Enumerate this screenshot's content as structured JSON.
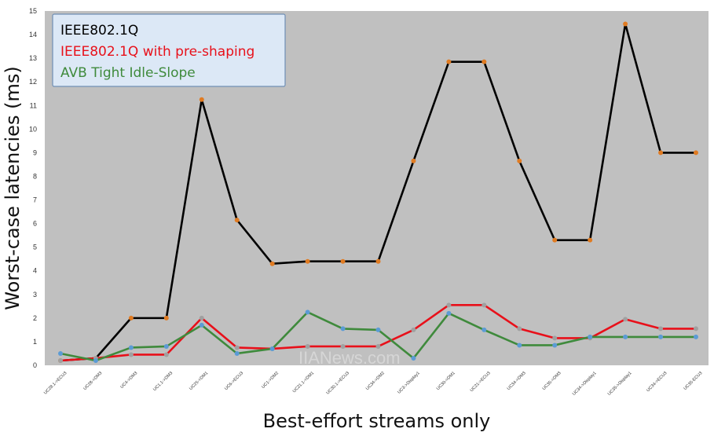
{
  "chart_data": {
    "type": "line",
    "title": "",
    "xlabel": "Best-effort streams only",
    "ylabel": "Worst-case latencies (ms)",
    "ylim": [
      0,
      15
    ],
    "yticks": [
      0,
      1,
      2,
      3,
      4,
      5,
      6,
      7,
      8,
      9,
      10,
      11,
      12,
      13,
      14,
      15
    ],
    "grid": false,
    "background": "#c0c0c0",
    "legend_position": "top-left",
    "categories": [
      "UC28.1->ECU3",
      "UC28->DM3",
      "UC4->DM3",
      "UC1.1->DM3",
      "UC25->DM1",
      "UC6->ECU3",
      "UC1->DM2",
      "UC21.1->DM1",
      "UC30.1->ECU3",
      "UC34->DM2",
      "UC3->Display1",
      "UC30->DM1",
      "UC21->ECU3",
      "UC34->DM3",
      "UC35->DM3",
      "UC34->Display1",
      "UC35->Display1",
      "UC34->ECU3",
      "UC35-ECU3"
    ],
    "series": [
      {
        "name": "IEEE802.1Q",
        "color": "#000000",
        "marker_color": "#e07b22",
        "values": [
          0.2,
          0.3,
          2.0,
          2.0,
          11.25,
          6.15,
          4.3,
          4.4,
          4.4,
          4.4,
          8.65,
          12.85,
          12.85,
          8.65,
          5.3,
          5.3,
          14.45,
          9.0,
          9.0
        ]
      },
      {
        "name": "IEEE802.1Q with pre-shaping",
        "color": "#e8101a",
        "marker_color": "#a0a0a0",
        "values": [
          0.2,
          0.3,
          0.45,
          0.45,
          2.0,
          0.75,
          0.7,
          0.8,
          0.8,
          0.8,
          1.5,
          2.55,
          2.55,
          1.55,
          1.15,
          1.15,
          1.95,
          1.55,
          1.55
        ]
      },
      {
        "name": "AVB Tight Idle-Slope",
        "color": "#3f8a3c",
        "marker_color": "#5b9bd5",
        "values": [
          0.5,
          0.2,
          0.75,
          0.8,
          1.7,
          0.5,
          0.7,
          2.25,
          1.55,
          1.5,
          0.3,
          2.2,
          1.5,
          0.85,
          0.85,
          1.2,
          1.2,
          1.2,
          1.2
        ]
      }
    ],
    "legend_colors": [
      "#000000",
      "#e8101a",
      "#3f8a3c"
    ]
  },
  "watermark": "IIANews.com"
}
